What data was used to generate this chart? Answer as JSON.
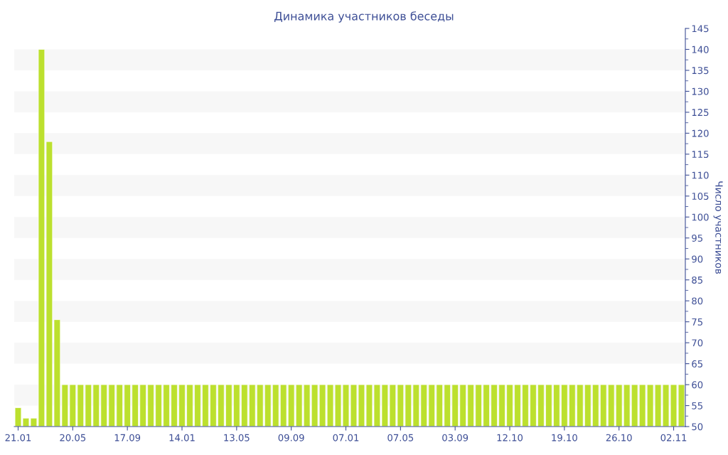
{
  "chart_data": {
    "type": "bar",
    "title": "Динамика участников беседы",
    "ylabel": "Число участников",
    "categories": [
      "21.01",
      null,
      null,
      null,
      null,
      null,
      null,
      "20.05",
      null,
      null,
      null,
      null,
      null,
      null,
      "17.09",
      null,
      null,
      null,
      null,
      null,
      null,
      "14.01",
      null,
      null,
      null,
      null,
      null,
      null,
      "13.05",
      null,
      null,
      null,
      null,
      null,
      null,
      "09.09",
      null,
      null,
      null,
      null,
      null,
      null,
      "07.01",
      null,
      null,
      null,
      null,
      null,
      null,
      "07.05",
      null,
      null,
      null,
      null,
      null,
      null,
      "03.09",
      null,
      null,
      null,
      null,
      null,
      null,
      "12.10",
      null,
      null,
      null,
      null,
      null,
      null,
      "19.10",
      null,
      null,
      null,
      null,
      null,
      null,
      "26.10",
      null,
      null,
      null,
      null,
      null,
      null,
      "02.11",
      null
    ],
    "series": [
      {
        "color": "#bce02e",
        "values": [
          54.5,
          52,
          52,
          140,
          118,
          75.5,
          60,
          60,
          60,
          60,
          60,
          60,
          60,
          60,
          60,
          60,
          60,
          60,
          60,
          60,
          60,
          60,
          60,
          60,
          60,
          60,
          60,
          60,
          60,
          60,
          60,
          60,
          60,
          60,
          60,
          60,
          60,
          60,
          60,
          60,
          60,
          60,
          60,
          60,
          60,
          60,
          60,
          60,
          60,
          60,
          60,
          60,
          60,
          60,
          60,
          60,
          60,
          60,
          60,
          60,
          60,
          60,
          60,
          60,
          60,
          60,
          60,
          60,
          60,
          60,
          60,
          60,
          60,
          60,
          60,
          60,
          60,
          60,
          60,
          60,
          60,
          60,
          60,
          60,
          60,
          60
        ]
      }
    ],
    "ylim": [
      50,
      145
    ],
    "yticks": [
      50,
      55,
      60,
      65,
      70,
      75,
      80,
      85,
      90,
      95,
      100,
      105,
      110,
      115,
      120,
      125,
      130,
      135,
      140,
      145
    ],
    "bands": [
      {
        "axis": "y",
        "from": 55,
        "to": 60,
        "color": "#f7f7f7"
      },
      {
        "axis": "y",
        "from": 65,
        "to": 70,
        "color": "#f7f7f7"
      },
      {
        "axis": "y",
        "from": 75,
        "to": 80,
        "color": "#f7f7f7"
      },
      {
        "axis": "y",
        "from": 85,
        "to": 90,
        "color": "#f7f7f7"
      },
      {
        "axis": "y",
        "from": 95,
        "to": 100,
        "color": "#f7f7f7"
      },
      {
        "axis": "y",
        "from": 105,
        "to": 110,
        "color": "#f7f7f7"
      },
      {
        "axis": "y",
        "from": 115,
        "to": 120,
        "color": "#f7f7f7"
      },
      {
        "axis": "y",
        "from": 125,
        "to": 130,
        "color": "#f7f7f7"
      },
      {
        "axis": "y",
        "from": 135,
        "to": 140,
        "color": "#f7f7f7"
      }
    ],
    "grid": false,
    "legend": false
  }
}
